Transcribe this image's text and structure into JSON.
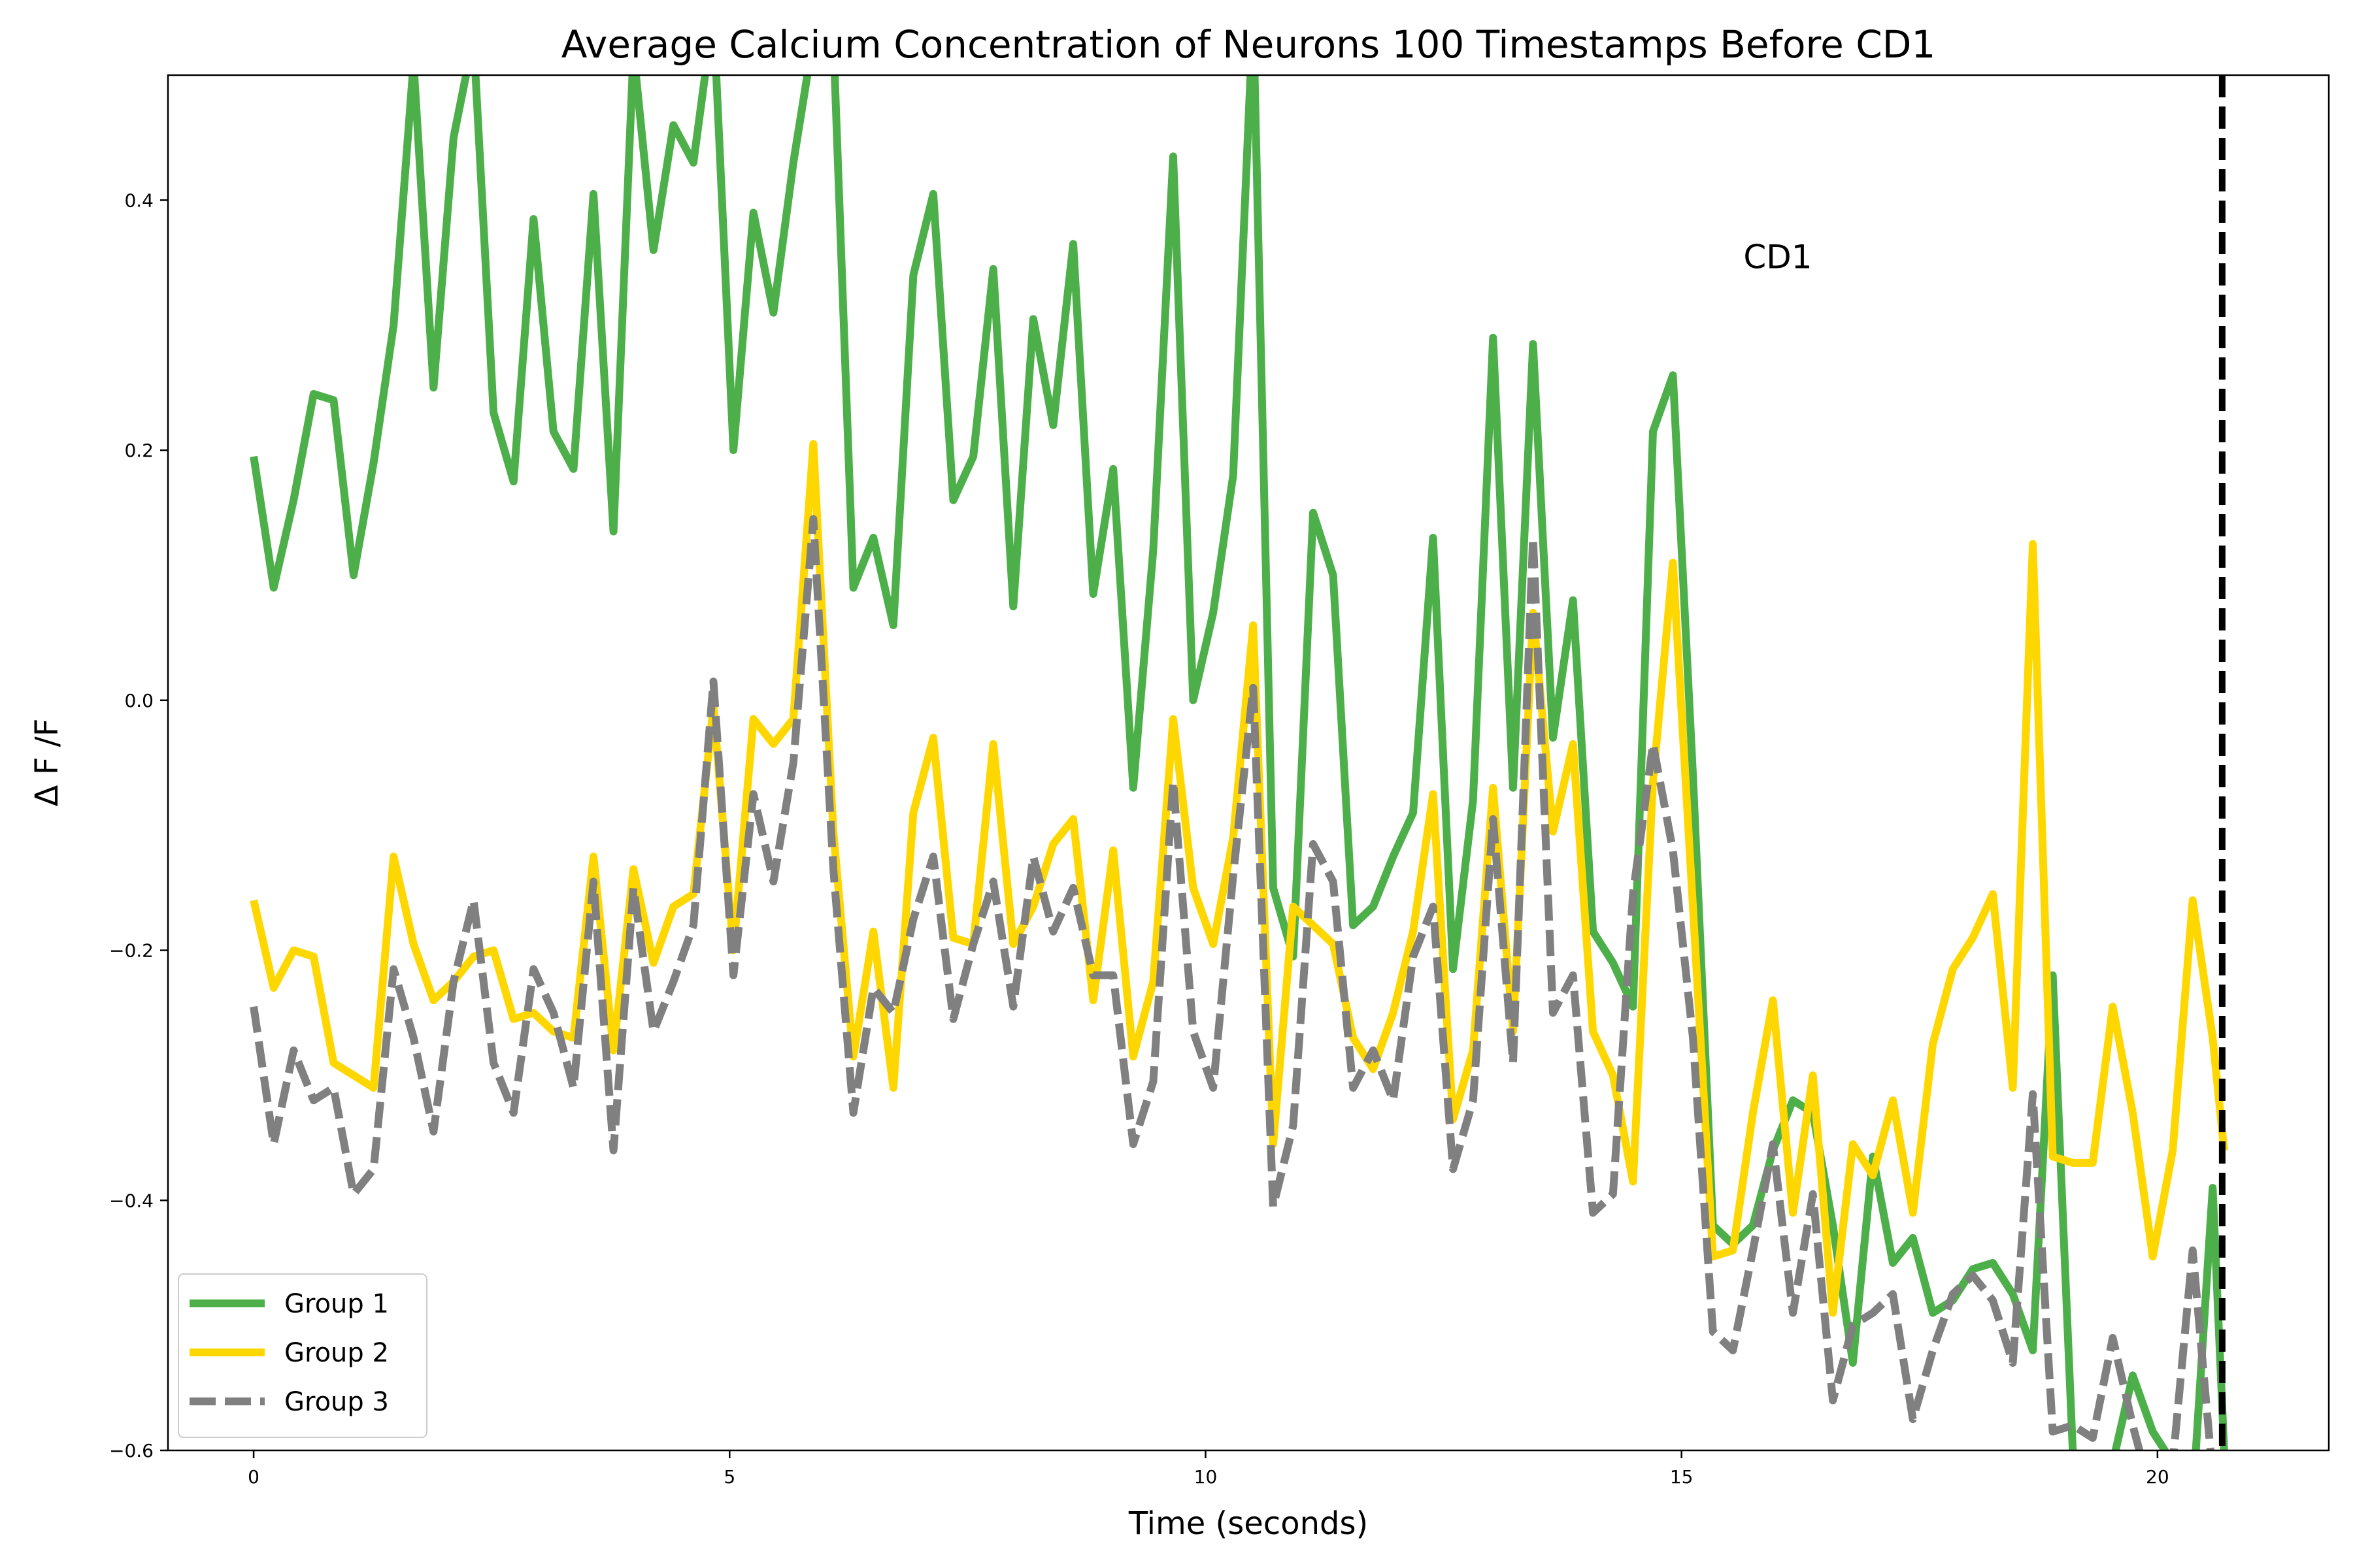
{
  "chart_data": {
    "type": "line",
    "title": "Average Calcium Concentration of Neurons 100 Timestamps Before CD1",
    "xlabel": "Time (seconds)",
    "ylabel": "Δ F /F",
    "xlim": [
      -0.9,
      21.8
    ],
    "ylim": [
      -0.6,
      0.5
    ],
    "xticks": [
      0,
      5,
      10,
      15,
      20
    ],
    "yticks": [
      -0.6,
      -0.4,
      -0.2,
      0.0,
      0.2,
      0.4
    ],
    "ytick_labels": [
      "−0.6",
      "−0.4",
      "−0.2",
      "0.0",
      "0.2",
      "0.4"
    ],
    "grid": false,
    "legend_position": "lower-left",
    "x": [
      0.0,
      0.21,
      0.42,
      0.63,
      0.84,
      1.05,
      1.26,
      1.47,
      1.68,
      1.89,
      2.1,
      2.31,
      2.52,
      2.73,
      2.94,
      3.15,
      3.36,
      3.57,
      3.78,
      3.99,
      4.2,
      4.41,
      4.62,
      4.83,
      5.04,
      5.25,
      5.46,
      5.67,
      5.88,
      6.09,
      6.3,
      6.51,
      6.72,
      6.93,
      7.14,
      7.35,
      7.56,
      7.77,
      7.98,
      8.19,
      8.4,
      8.61,
      8.82,
      9.03,
      9.24,
      9.45,
      9.66,
      9.87,
      10.08,
      10.29,
      10.5,
      10.71,
      10.92,
      11.13,
      11.34,
      11.55,
      11.76,
      11.97,
      12.18,
      12.39,
      12.6,
      12.81,
      13.02,
      13.23,
      13.44,
      13.65,
      13.86,
      14.07,
      14.28,
      14.49,
      14.7,
      14.91,
      15.12,
      15.33,
      15.54,
      15.75,
      15.96,
      16.17,
      16.38,
      16.59,
      16.8,
      17.01,
      17.22,
      17.43,
      17.64,
      17.85,
      18.06,
      18.27,
      18.48,
      18.69,
      18.9,
      19.11,
      19.32,
      19.53,
      19.74,
      19.95,
      20.16,
      20.37,
      20.58,
      20.7
    ],
    "series": [
      {
        "name": "Group 1",
        "color": "#4daf4a",
        "style": "solid",
        "values": [
          0.195,
          0.09,
          0.16,
          0.245,
          0.24,
          0.1,
          0.19,
          0.3,
          0.51,
          0.25,
          0.45,
          0.53,
          0.23,
          0.175,
          0.385,
          0.215,
          0.185,
          0.405,
          0.135,
          0.52,
          0.36,
          0.46,
          0.43,
          0.55,
          0.2,
          0.39,
          0.31,
          0.43,
          0.53,
          0.53,
          0.09,
          0.13,
          0.06,
          0.34,
          0.405,
          0.16,
          0.195,
          0.345,
          0.075,
          0.305,
          0.22,
          0.365,
          0.085,
          0.185,
          -0.07,
          0.12,
          0.435,
          0.0,
          0.07,
          0.18,
          0.55,
          -0.15,
          -0.205,
          0.15,
          0.1,
          -0.18,
          -0.165,
          -0.125,
          -0.09,
          0.13,
          -0.215,
          -0.08,
          0.29,
          -0.07,
          0.285,
          -0.03,
          0.08,
          -0.185,
          -0.21,
          -0.245,
          0.215,
          0.26,
          -0.06,
          -0.42,
          -0.435,
          -0.42,
          -0.36,
          -0.32,
          -0.33,
          -0.42,
          -0.53,
          -0.365,
          -0.45,
          -0.43,
          -0.49,
          -0.48,
          -0.455,
          -0.45,
          -0.475,
          -0.52,
          -0.22,
          -0.6,
          -0.62,
          -0.61,
          -0.54,
          -0.585,
          -0.61,
          -0.64,
          -0.39,
          -0.6
        ]
      },
      {
        "name": "Group 2",
        "color": "#ffd700",
        "style": "solid",
        "values": [
          -0.16,
          -0.23,
          -0.2,
          -0.205,
          -0.29,
          -0.3,
          -0.31,
          -0.125,
          -0.195,
          -0.24,
          -0.225,
          -0.205,
          -0.2,
          -0.255,
          -0.25,
          -0.265,
          -0.27,
          -0.125,
          -0.28,
          -0.135,
          -0.21,
          -0.165,
          -0.155,
          -0.005,
          -0.2,
          -0.015,
          -0.035,
          -0.015,
          0.205,
          -0.105,
          -0.285,
          -0.185,
          -0.31,
          -0.09,
          -0.03,
          -0.19,
          -0.195,
          -0.035,
          -0.195,
          -0.165,
          -0.115,
          -0.095,
          -0.24,
          -0.12,
          -0.285,
          -0.225,
          -0.015,
          -0.15,
          -0.195,
          -0.11,
          0.06,
          -0.355,
          -0.165,
          -0.18,
          -0.195,
          -0.27,
          -0.295,
          -0.25,
          -0.185,
          -0.075,
          -0.335,
          -0.28,
          -0.07,
          -0.265,
          0.07,
          -0.105,
          -0.035,
          -0.265,
          -0.3,
          -0.385,
          -0.065,
          0.11,
          -0.165,
          -0.445,
          -0.44,
          -0.33,
          -0.24,
          -0.41,
          -0.3,
          -0.49,
          -0.355,
          -0.38,
          -0.32,
          -0.41,
          -0.275,
          -0.215,
          -0.19,
          -0.155,
          -0.31,
          0.125,
          -0.365,
          -0.37,
          -0.37,
          -0.245,
          -0.33,
          -0.445,
          -0.36,
          -0.16,
          -0.27,
          -0.36
        ]
      },
      {
        "name": "Group 3",
        "color": "#808080",
        "style": "dashed",
        "values": [
          -0.245,
          -0.355,
          -0.28,
          -0.32,
          -0.31,
          -0.395,
          -0.375,
          -0.215,
          -0.27,
          -0.345,
          -0.225,
          -0.16,
          -0.29,
          -0.33,
          -0.215,
          -0.25,
          -0.31,
          -0.145,
          -0.36,
          -0.15,
          -0.265,
          -0.225,
          -0.18,
          0.015,
          -0.22,
          -0.075,
          -0.145,
          -0.05,
          0.145,
          -0.135,
          -0.33,
          -0.23,
          -0.25,
          -0.175,
          -0.125,
          -0.255,
          -0.195,
          -0.145,
          -0.245,
          -0.125,
          -0.185,
          -0.15,
          -0.22,
          -0.22,
          -0.355,
          -0.305,
          -0.065,
          -0.265,
          -0.31,
          -0.14,
          0.01,
          -0.405,
          -0.34,
          -0.115,
          -0.145,
          -0.31,
          -0.28,
          -0.32,
          -0.205,
          -0.165,
          -0.375,
          -0.32,
          -0.095,
          -0.29,
          0.13,
          -0.25,
          -0.22,
          -0.41,
          -0.395,
          -0.155,
          -0.035,
          -0.12,
          -0.27,
          -0.505,
          -0.52,
          -0.44,
          -0.355,
          -0.49,
          -0.395,
          -0.56,
          -0.5,
          -0.49,
          -0.475,
          -0.575,
          -0.52,
          -0.475,
          -0.46,
          -0.48,
          -0.53,
          -0.315,
          -0.585,
          -0.58,
          -0.59,
          -0.51,
          -0.58,
          -0.64,
          -0.61,
          -0.44,
          -0.62,
          -0.62
        ]
      }
    ],
    "vline": {
      "x": 20.68,
      "color": "#000000",
      "style": "dashed"
    },
    "annotation": {
      "text": "CD1",
      "x": 15.65,
      "y": 0.355
    }
  }
}
